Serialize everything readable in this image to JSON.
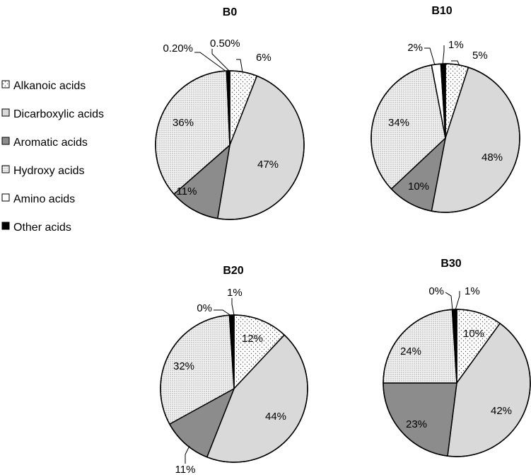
{
  "categories": [
    "Alkanoic acids",
    "Dicarboxylic acids",
    "Aromatic acids",
    "Hydroxy acids",
    "Amino acids",
    "Other acids"
  ],
  "fills": [
    "pat-dots",
    "#d9d9d9",
    "#8c8c8c",
    "pat-dense",
    "#ffffff",
    "#000000"
  ],
  "chart_data": [
    {
      "type": "pie",
      "title": "B0",
      "values": [
        6,
        47,
        11,
        36,
        0.2,
        0.5
      ],
      "labels": [
        "6%",
        "47%",
        "11%",
        "36%",
        "0.20%",
        "0.50%"
      ]
    },
    {
      "type": "pie",
      "title": "B10",
      "values": [
        5,
        48,
        10,
        34,
        2,
        1
      ],
      "labels": [
        "5%",
        "48%",
        "10%",
        "34%",
        "2%",
        "1%"
      ]
    },
    {
      "type": "pie",
      "title": "B20",
      "values": [
        12,
        44,
        11,
        32,
        0,
        1
      ],
      "labels": [
        "12%",
        "44%",
        "11%",
        "32%",
        "0%",
        "1%"
      ]
    },
    {
      "type": "pie",
      "title": "B30",
      "values": [
        10,
        42,
        23,
        24,
        0,
        1
      ],
      "labels": [
        "10%",
        "42%",
        "23%",
        "24%",
        "0%",
        "1%"
      ]
    }
  ]
}
